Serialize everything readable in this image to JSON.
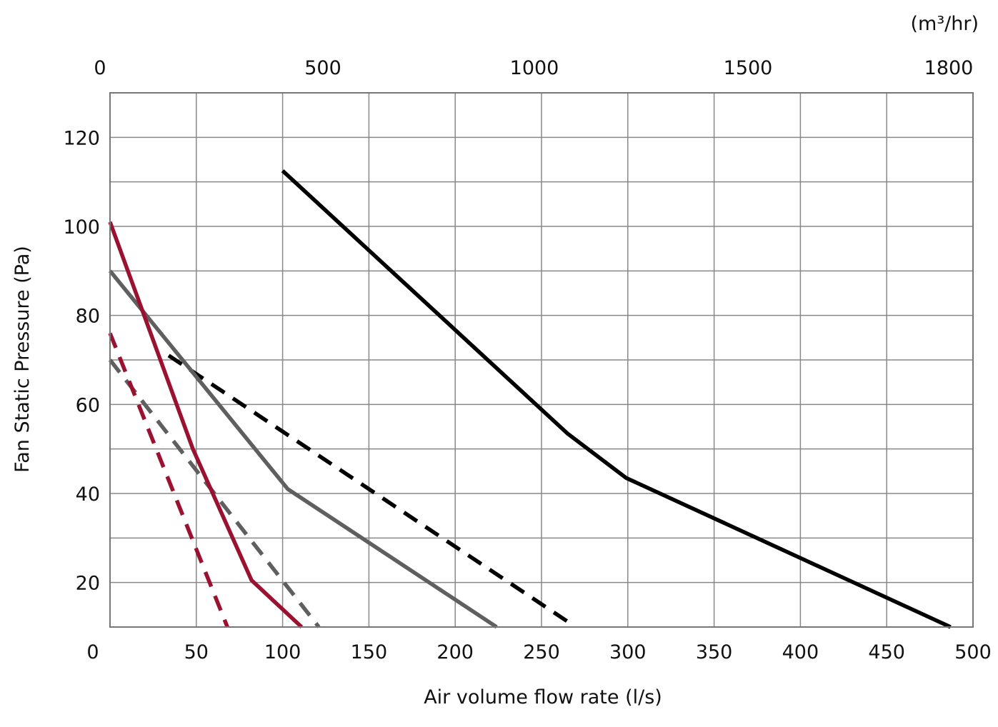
{
  "chart_data": {
    "type": "line",
    "title": "",
    "xlabel": "Air volume flow rate (l/s)",
    "ylabel": "Fan Static Pressure (Pa)",
    "top_axis_unit": "(m³/hr)",
    "xlim": [
      0,
      500
    ],
    "ylim": [
      10,
      130
    ],
    "grid": true,
    "x_ticks": [
      "0",
      "50",
      "100",
      "150",
      "200",
      "250",
      "300",
      "350",
      "400",
      "450",
      "500"
    ],
    "y_ticks": [
      "20",
      "40",
      "60",
      "80",
      "100",
      "120"
    ],
    "top_ticks": [
      "0",
      "500",
      "1000",
      "1500",
      "1800"
    ],
    "series": [
      {
        "color": "#000000",
        "style": "solid",
        "points": [
          [
            100,
            112.5
          ],
          [
            265,
            53.5
          ],
          [
            299,
            43.5
          ],
          [
            487,
            10
          ]
        ]
      },
      {
        "color": "#000000",
        "style": "dashed",
        "points": [
          [
            34,
            71
          ],
          [
            266,
            11
          ]
        ]
      },
      {
        "color": "#5f5f5f",
        "style": "solid",
        "points": [
          [
            0,
            90
          ],
          [
            103,
            41
          ],
          [
            224,
            10
          ]
        ]
      },
      {
        "color": "#5f5f5f",
        "style": "dashed",
        "points": [
          [
            0,
            70
          ],
          [
            121,
            10
          ]
        ]
      },
      {
        "color": "#9b1230",
        "style": "solid",
        "points": [
          [
            0,
            101
          ],
          [
            48,
            50
          ],
          [
            82,
            20.5
          ],
          [
            111,
            10
          ]
        ]
      },
      {
        "color": "#9b1230",
        "style": "dashed",
        "points": [
          [
            0,
            76
          ],
          [
            68,
            10
          ]
        ]
      }
    ]
  }
}
